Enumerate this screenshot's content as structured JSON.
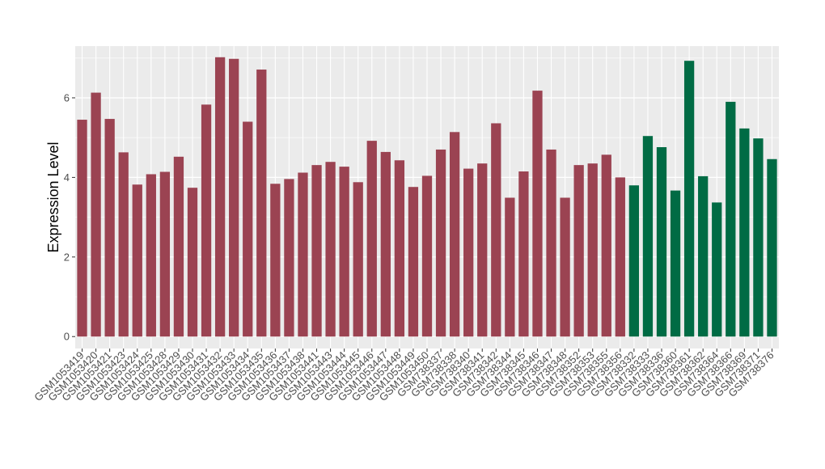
{
  "chart_data": {
    "type": "bar",
    "title": "",
    "xlabel": "",
    "ylabel": "Expression Level",
    "ylim": [
      -0.3,
      7.3
    ],
    "yticks": [
      0,
      2,
      4,
      6
    ],
    "grid": true,
    "legend": "none",
    "colors": {
      "group_a": "#9b4352",
      "group_b": "#006b44",
      "panel": "#ebebeb",
      "grid": "#ffffff"
    },
    "categories": [
      "GSM1053419",
      "GSM1053420",
      "GSM1053421",
      "GSM1053423",
      "GSM1053424",
      "GSM1053425",
      "GSM1053428",
      "GSM1053429",
      "GSM1053430",
      "GSM1053431",
      "GSM1053432",
      "GSM1053433",
      "GSM1053434",
      "GSM1053435",
      "GSM1053436",
      "GSM1053437",
      "GSM1053438",
      "GSM1053441",
      "GSM1053443",
      "GSM1053444",
      "GSM1053445",
      "GSM1053446",
      "GSM1053447",
      "GSM1053448",
      "GSM1053449",
      "GSM1053450",
      "GSM738337",
      "GSM738338",
      "GSM738340",
      "GSM738341",
      "GSM738342",
      "GSM738344",
      "GSM738345",
      "GSM738346",
      "GSM738347",
      "GSM738348",
      "GSM738352",
      "GSM738353",
      "GSM738355",
      "GSM738356",
      "GSM738332",
      "GSM738333",
      "GSM738336",
      "GSM738360",
      "GSM738361",
      "GSM738362",
      "GSM738364",
      "GSM738366",
      "GSM738369",
      "GSM738371",
      "GSM738376"
    ],
    "values": [
      5.45,
      6.13,
      5.47,
      4.63,
      3.82,
      4.08,
      4.14,
      4.52,
      3.74,
      5.83,
      7.02,
      6.98,
      5.4,
      6.71,
      3.84,
      3.96,
      4.12,
      4.31,
      4.39,
      4.27,
      3.88,
      4.92,
      4.64,
      4.43,
      3.76,
      4.04,
      4.7,
      5.14,
      4.22,
      4.35,
      5.36,
      3.49,
      4.15,
      6.18,
      4.7,
      3.49,
      4.31,
      4.35,
      4.57,
      4.0,
      3.8,
      5.04,
      4.76,
      3.67,
      6.93,
      4.03,
      3.37,
      5.9,
      5.23,
      4.98,
      4.46
    ],
    "groups": [
      "a",
      "a",
      "a",
      "a",
      "a",
      "a",
      "a",
      "a",
      "a",
      "a",
      "a",
      "a",
      "a",
      "a",
      "a",
      "a",
      "a",
      "a",
      "a",
      "a",
      "a",
      "a",
      "a",
      "a",
      "a",
      "a",
      "a",
      "a",
      "a",
      "a",
      "a",
      "a",
      "a",
      "a",
      "a",
      "a",
      "a",
      "a",
      "a",
      "a",
      "b",
      "b",
      "b",
      "b",
      "b",
      "b",
      "b",
      "b",
      "b",
      "b",
      "b"
    ]
  }
}
